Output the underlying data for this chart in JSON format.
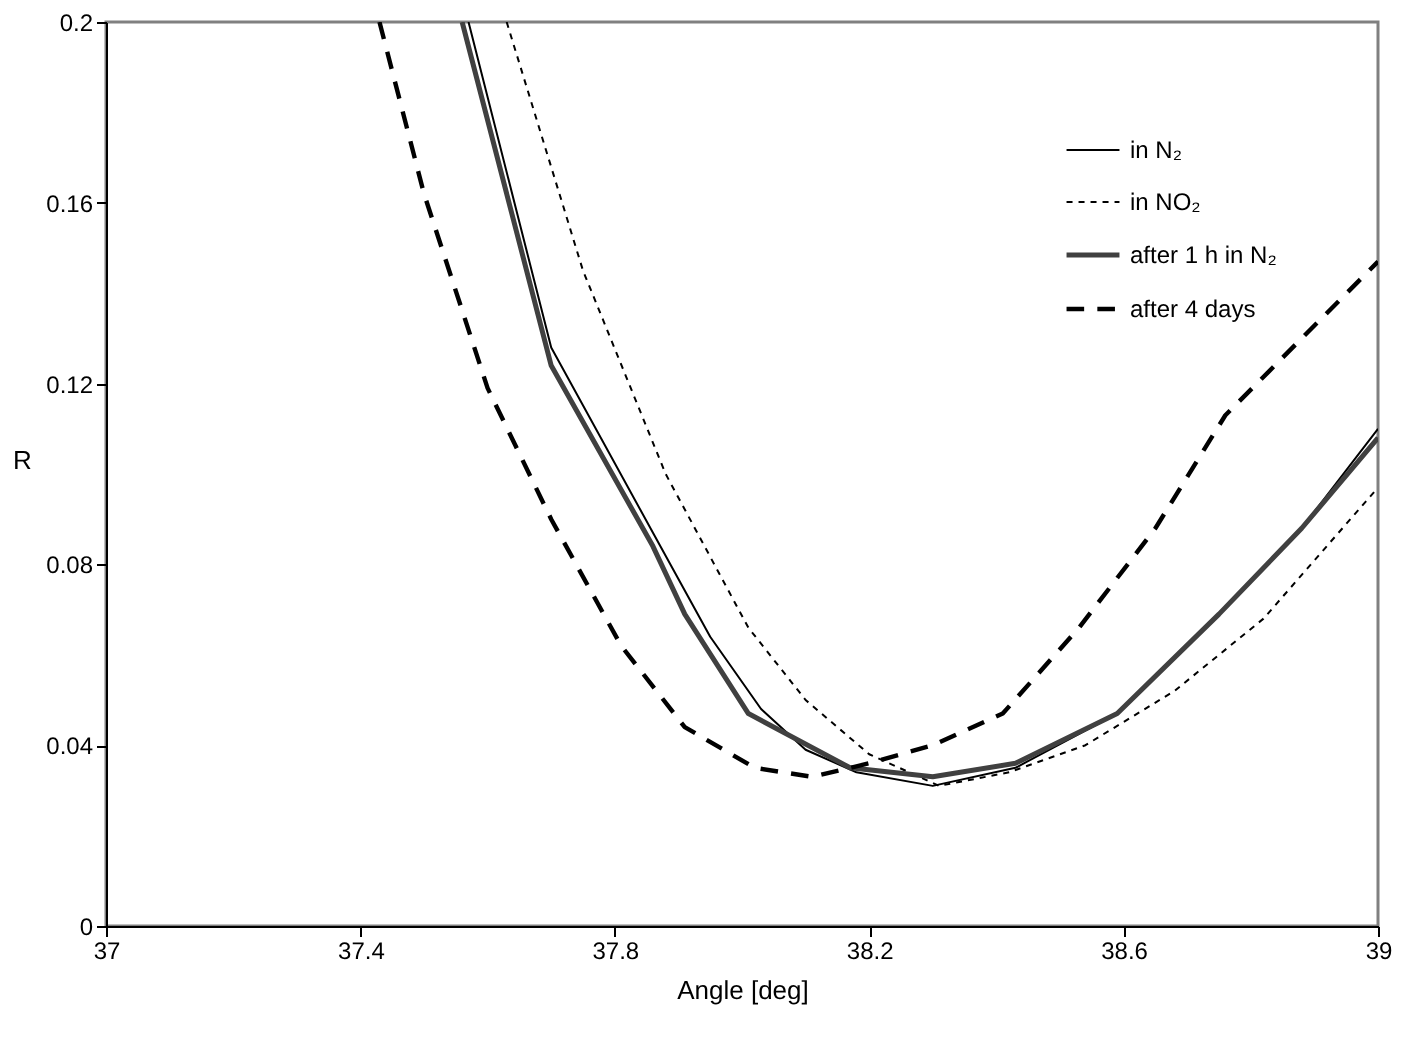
{
  "chart_data": {
    "type": "line",
    "xlabel": "Angle [deg]",
    "ylabel": "R",
    "xlim": [
      37,
      39
    ],
    "xticks": [
      {
        "value": 37,
        "label": "37"
      },
      {
        "value": 37.4,
        "label": "37.4"
      },
      {
        "value": 37.8,
        "label": "37.8"
      },
      {
        "value": 38.2,
        "label": "38.2"
      },
      {
        "value": 38.6,
        "label": "38.6"
      },
      {
        "value": 39,
        "label": "39"
      }
    ],
    "ylim": [
      0,
      0.2
    ],
    "yticks": [
      {
        "value": 0,
        "label": "0"
      },
      {
        "value": 0.04,
        "label": "0.04"
      },
      {
        "value": 0.08,
        "label": "0.08"
      },
      {
        "value": 0.12,
        "label": "0.12"
      },
      {
        "value": 0.16,
        "label": "0.16"
      },
      {
        "value": 0.2,
        "label": "0.2"
      }
    ],
    "grid": false,
    "legend": "top right",
    "marker": "none",
    "series": [
      {
        "name": "in N₂",
        "color": "#000000",
        "line_style": "solid",
        "x": [
          37.57,
          37.7,
          37.86,
          37.95,
          38.03,
          38.1,
          38.18,
          38.3,
          38.43,
          38.59,
          38.75,
          38.88,
          39.0
        ],
        "values": [
          0.2,
          0.128,
          0.087,
          0.064,
          0.048,
          0.039,
          0.034,
          0.031,
          0.035,
          0.047,
          0.069,
          0.088,
          0.11
        ]
      },
      {
        "name": "in NO₂",
        "color": "#000000",
        "line_style": "dashed",
        "x": [
          37.63,
          37.75,
          37.88,
          38.01,
          38.1,
          38.2,
          38.31,
          38.42,
          38.54,
          38.68,
          38.82,
          39.0
        ],
        "values": [
          0.2,
          0.145,
          0.1,
          0.066,
          0.05,
          0.038,
          0.031,
          0.034,
          0.04,
          0.052,
          0.068,
          0.097
        ]
      },
      {
        "name": "after 1 h in N₂",
        "color": "#404040",
        "line_style": "solid",
        "x": [
          37.56,
          37.7,
          37.86,
          37.91,
          38.01,
          38.17,
          38.3,
          38.43,
          38.59,
          38.75,
          38.88,
          39.0
        ],
        "values": [
          0.2,
          0.124,
          0.084,
          0.069,
          0.047,
          0.035,
          0.033,
          0.036,
          0.047,
          0.069,
          0.088,
          0.108
        ]
      },
      {
        "name": "after 4 days",
        "color": "#000000",
        "line_style": "dashed",
        "x": [
          37.43,
          37.5,
          37.6,
          37.7,
          37.81,
          37.91,
          38.02,
          38.11,
          38.2,
          38.3,
          38.41,
          38.53,
          38.65,
          38.76,
          38.88,
          39.0
        ],
        "values": [
          0.2,
          0.162,
          0.119,
          0.09,
          0.062,
          0.044,
          0.035,
          0.033,
          0.036,
          0.04,
          0.047,
          0.066,
          0.088,
          0.113,
          0.13,
          0.147
        ]
      }
    ]
  }
}
